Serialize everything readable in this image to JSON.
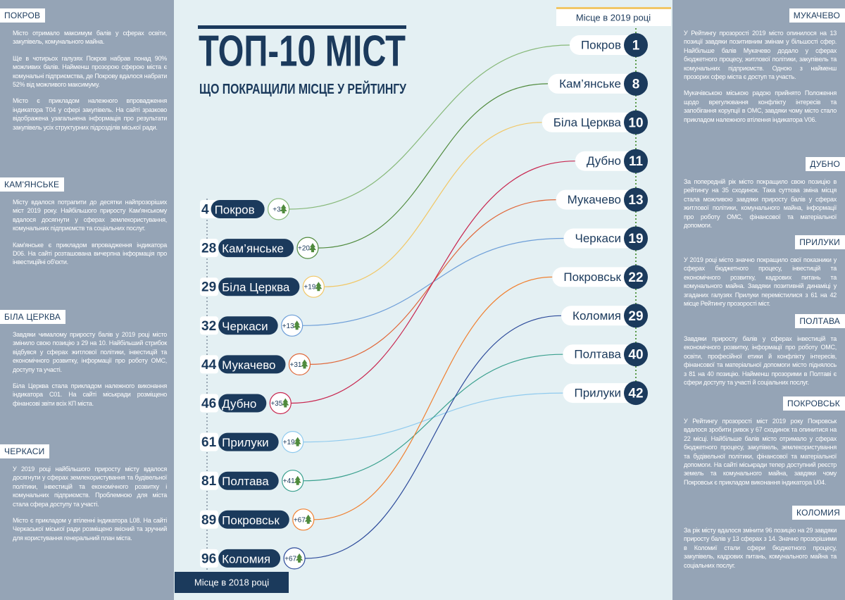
{
  "title": "ТОП-10 МІСТ",
  "subtitle": "ЩО ПОКРАЩИЛИ МІСЦЕ У РЕЙТИНГУ",
  "ranking_2018": {
    "caption": "Місце в 2018 році",
    "items": [
      {
        "rank": 4,
        "city": "Покров",
        "change": "+3",
        "color": "#86b878"
      },
      {
        "rank": 28,
        "city": "Кам’янське",
        "change": "+20",
        "color": "#4f8a3c"
      },
      {
        "rank": 29,
        "city": "Біла Церква",
        "change": "+19",
        "color": "#f1c766"
      },
      {
        "rank": 32,
        "city": "Черкаси",
        "change": "+13",
        "color": "#6d9ed8"
      },
      {
        "rank": 44,
        "city": "Мукачево",
        "change": "+31",
        "color": "#e0683a"
      },
      {
        "rank": 46,
        "city": "Дубно",
        "change": "+35",
        "color": "#c8264f"
      },
      {
        "rank": 61,
        "city": "Прилуки",
        "change": "+19",
        "color": "#8fcaee"
      },
      {
        "rank": 81,
        "city": "Полтава",
        "change": "+41",
        "color": "#3aa08e"
      },
      {
        "rank": 89,
        "city": "Покровськ",
        "change": "+67",
        "color": "#f08030"
      },
      {
        "rank": 96,
        "city": "Коломия",
        "change": "+67",
        "color": "#2c4a9a"
      }
    ]
  },
  "ranking_2019": {
    "caption": "Місце в 2019 році",
    "items": [
      {
        "rank": 1,
        "city": "Покров"
      },
      {
        "rank": 8,
        "city": "Кам’янське"
      },
      {
        "rank": 10,
        "city": "Біла Церква"
      },
      {
        "rank": 11,
        "city": "Дубно"
      },
      {
        "rank": 13,
        "city": "Мукачево"
      },
      {
        "rank": 19,
        "city": "Черкаси"
      },
      {
        "rank": 22,
        "city": "Покровськ"
      },
      {
        "rank": 29,
        "city": "Коломия"
      },
      {
        "rank": 40,
        "city": "Полтава"
      },
      {
        "rank": 42,
        "city": "Прилуки"
      }
    ]
  },
  "left_notes": [
    {
      "heading": "ПОКРОВ",
      "paragraphs": [
        "Місто отримало максимум балів у сферах освіти, закупівель, комунального майна.",
        "Ще в чотирьох галузях Покров набрав понад 90% можливих балів. Найменш прозорою сферою міста є комунальні підприємства, де Покрову вдалося набрати 52% від можливого максимуму.",
        "Місто є прикладом належного впровадження індикатора Т04 у сфері закупівель. На сайті зразково відображена узагальнена інформація про результати закупівель усіх структурних підрозділів міської ради."
      ]
    },
    {
      "heading": "КАМ'ЯНСЬКЕ",
      "paragraphs": [
        "Місту вдалося потрапити до десятки найпрозоріших міст 2019 року. Найбільшого приросту Кам'янському вдалося досягнути у сферах землекористування, комунальних підприємств та соціальних послуг.",
        "Кам'янське є прикладом впровадження індикатора D06. На сайті розташована вичерпна інформація про інвестиційні об'єкти."
      ]
    },
    {
      "heading": "БІЛА ЦЕРКВА",
      "paragraphs": [
        "Завдяки чималому приросту балів у 2019 році місто змінило свою позицію з 29 на 10. Найбільший стрибок відбувся у сферах житлової політики, інвестицій та економічного розвитку, інформації про роботу ОМС, доступу та участі.",
        "Біла Церква стала прикладом належного виконання індикатора С01. На сайті міськради розміщено фінансові звіти всіх КП міста."
      ]
    },
    {
      "heading": "ЧЕРКАСИ",
      "paragraphs": [
        "У 2019 році найбільшого приросту місту вдалося досягнути у сферах землекористування та будівельної політики, інвестицій та економічного розвитку і комунальних підприємств. Проблемною для міста стала сфера доступу та участі.",
        "Місто є прикладом у втіленні індикатора L08. На сайті Черкаської міської ради розміщено якісний та зручний для користування генеральний план міста."
      ]
    }
  ],
  "right_notes": [
    {
      "heading": "МУКАЧЕВО",
      "paragraphs": [
        "У Рейтингу прозорості 2019 місто опинилося на 13 позиції завдяки позитивним змінам у більшості сфер. Найбільше балів Мукачево додало у сферах бюджетного процесу, житлової політики, закупівель та комунальних підприємств. Одною з найменш прозорих сфер міста є доступ та участь.",
        "Мукачівською міською радою прийнято Положення щодо врегулювання конфлікту інтересів та запобігання корупції в ОМС, завдяки чому місто стало прикладом належного втілення індикатора V06."
      ]
    },
    {
      "heading": "ДУБНО",
      "paragraphs": [
        "За попередній рік місто покращило свою позицію в рейтингу на 35 сходинок. Така суттєва зміна місця стала можливою завдяки приросту балів у сферах житлової політики, комунального майна, інформації про роботу ОМС, фінансової та матеріальної допомоги."
      ]
    },
    {
      "heading": "ПРИЛУКИ",
      "paragraphs": [
        "У 2019 році місто значно покращило свої показники у сферах бюджетного процесу, інвестицій та економічного розвитку, кадрових питань та комунального майна. Завдяки позитивній динаміці у згаданих галузях Прилуки перемістилися з 61 на 42 місце Рейтингу прозорості міст."
      ]
    },
    {
      "heading": "ПОЛТАВА",
      "paragraphs": [
        "Завдяки приросту балів у сферах інвестицій та економічного розвитку, інформації про роботу ОМС, освіти, професійної етики й конфлікту інтересів, фінансової та матеріальної допомоги місто піднялось з 81 на 40 позицію. Найменш прозорими в Полтаві є сфери доступу та участі й соціальних послуг."
      ]
    },
    {
      "heading": "ПОКРОВСЬК",
      "paragraphs": [
        "У Рейтингу прозорості міст 2019 року Покровськ вдалося зробити ривок у 67 сходинок та опинитися на 22 місці. Найбільше балів місто отримало у сферах бюджетного процесу, закупівель, землекористування та будівельної політики, фінансової та матеріальної допомоги. На сайті міськради тепер доступний реєстр земель та комунального майна, завдяки чому Покровськ є прикладом виконання індикатора U04."
      ]
    },
    {
      "heading": "КОЛОМИЯ",
      "paragraphs": [
        "За рік місту вдалося змінити 96 позицію на 29 завдяки приросту балів у 13 сферах з 14. Значно прозорішими в Коломиї стали сфери бюджетного процесу, закупівель, кадрових питань, комунального майна та соціальних послуг."
      ]
    }
  ]
}
